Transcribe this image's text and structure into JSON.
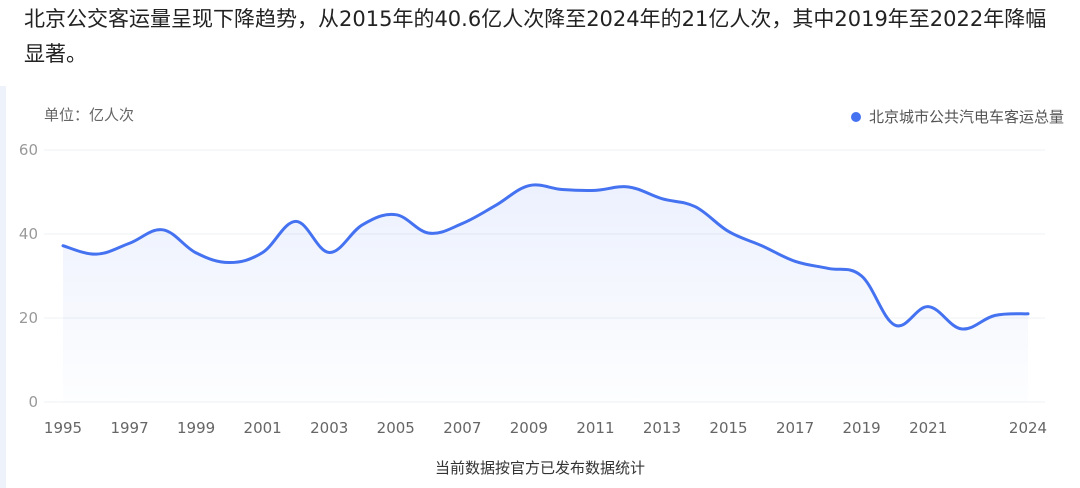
{
  "caption": "北京公交客运量呈现下降趋势，从2015年的40.6亿人次降至2024年的21亿人次，其中2019年至2022年降幅显著。",
  "footnote": "当前数据按官方已发布数据统计",
  "colors": {
    "line": "#4472f0",
    "grid": "#eef0f4"
  },
  "chart_data": {
    "type": "area",
    "ylabel": "单位：亿人次",
    "ylim": [
      0,
      60
    ],
    "yticks": [
      0,
      20,
      40,
      60
    ],
    "xticks": [
      "1995",
      "1997",
      "1999",
      "2001",
      "2003",
      "2005",
      "2007",
      "2009",
      "2011",
      "2013",
      "2015",
      "2017",
      "2019",
      "2021",
      "2024"
    ],
    "legend": "top-right",
    "series": [
      {
        "name": "北京城市公共汽电车客运总量",
        "x": [
          1995,
          1996,
          1997,
          1998,
          1999,
          2000,
          2001,
          2002,
          2003,
          2004,
          2005,
          2006,
          2007,
          2008,
          2009,
          2010,
          2011,
          2012,
          2013,
          2014,
          2015,
          2016,
          2017,
          2018,
          2019,
          2020,
          2021,
          2022,
          2023,
          2024
        ],
        "values": [
          37.2,
          35.2,
          37.8,
          41.0,
          35.5,
          33.2,
          35.6,
          43.0,
          35.6,
          42.2,
          44.6,
          40.2,
          42.5,
          46.8,
          51.5,
          50.6,
          50.4,
          51.2,
          48.4,
          46.5,
          40.6,
          37.2,
          33.5,
          31.8,
          30.0,
          18.3,
          22.7,
          17.4,
          20.6,
          21.0
        ]
      }
    ]
  }
}
